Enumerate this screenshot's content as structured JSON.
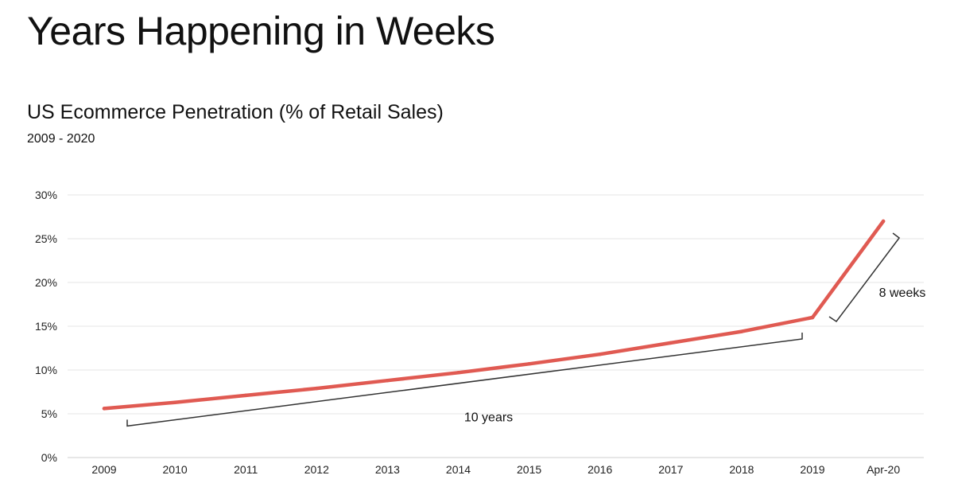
{
  "page": {
    "title": "Years Happening in Weeks"
  },
  "chart_data": {
    "type": "line",
    "title": "US Ecommerce Penetration (% of Retail Sales)",
    "subtitle": "2009 - 2020",
    "xlabel": "",
    "ylabel": "",
    "categories": [
      "2009",
      "2010",
      "2011",
      "2012",
      "2013",
      "2014",
      "2015",
      "2016",
      "2017",
      "2018",
      "2019",
      "Apr-20"
    ],
    "series": [
      {
        "values": [
          5.6,
          6.3,
          7.1,
          7.9,
          8.8,
          9.7,
          10.7,
          11.8,
          13.1,
          14.4,
          16.0,
          27.0
        ],
        "color": "#e05a52"
      }
    ],
    "ylim": [
      0,
      30
    ],
    "yticks": [
      0,
      5,
      10,
      15,
      20,
      25,
      30
    ],
    "ytick_labels": [
      "0%",
      "5%",
      "10%",
      "15%",
      "20%",
      "25%",
      "30%"
    ],
    "grid": true,
    "legend": "none",
    "annotations": [
      {
        "text": "10 years",
        "from": "2009",
        "to": "2019"
      },
      {
        "text": "8 weeks",
        "from": "2019",
        "to": "Apr-20"
      }
    ]
  }
}
